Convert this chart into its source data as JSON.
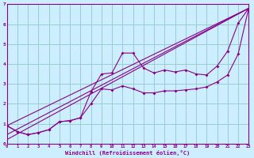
{
  "xlabel": "Windchill (Refroidissement éolien,°C)",
  "bg_color": "#cceeff",
  "line_color": "#880088",
  "grid_color": "#99cccc",
  "xlim": [
    0,
    23
  ],
  "ylim": [
    0,
    7
  ],
  "xticks": [
    0,
    1,
    2,
    3,
    4,
    5,
    6,
    7,
    8,
    9,
    10,
    11,
    12,
    13,
    14,
    15,
    16,
    17,
    18,
    19,
    20,
    21,
    22,
    23
  ],
  "yticks": [
    0,
    1,
    2,
    3,
    4,
    5,
    6,
    7
  ],
  "s1_x": [
    0,
    1,
    2,
    3,
    4,
    5,
    6,
    7,
    8,
    9,
    10,
    11,
    12,
    13,
    14,
    15,
    16,
    17,
    18,
    19,
    20,
    21,
    22,
    23
  ],
  "s1_y": [
    0.9,
    0.6,
    0.45,
    0.55,
    0.7,
    1.1,
    1.15,
    1.3,
    2.6,
    3.5,
    3.55,
    4.55,
    4.55,
    3.8,
    3.55,
    3.7,
    3.6,
    3.7,
    3.5,
    3.45,
    3.9,
    4.65,
    6.05,
    6.8
  ],
  "s2_x": [
    0,
    1,
    2,
    3,
    4,
    5,
    6,
    7,
    8,
    9,
    10,
    11,
    12,
    13,
    14,
    15,
    16,
    17,
    18,
    19,
    20,
    21,
    22,
    23
  ],
  "s2_y": [
    0.9,
    0.6,
    0.45,
    0.55,
    0.7,
    1.1,
    1.15,
    1.3,
    2.0,
    2.75,
    2.7,
    2.9,
    2.75,
    2.55,
    2.55,
    2.65,
    2.65,
    2.7,
    2.75,
    2.85,
    3.1,
    3.45,
    4.5,
    6.8
  ],
  "trend1_x": [
    0,
    23
  ],
  "trend1_y": [
    0.9,
    6.8
  ],
  "trend2_x": [
    0,
    23
  ],
  "trend2_y": [
    0.45,
    6.8
  ],
  "trend3_x": [
    0,
    23
  ],
  "trend3_y": [
    0.2,
    6.8
  ]
}
